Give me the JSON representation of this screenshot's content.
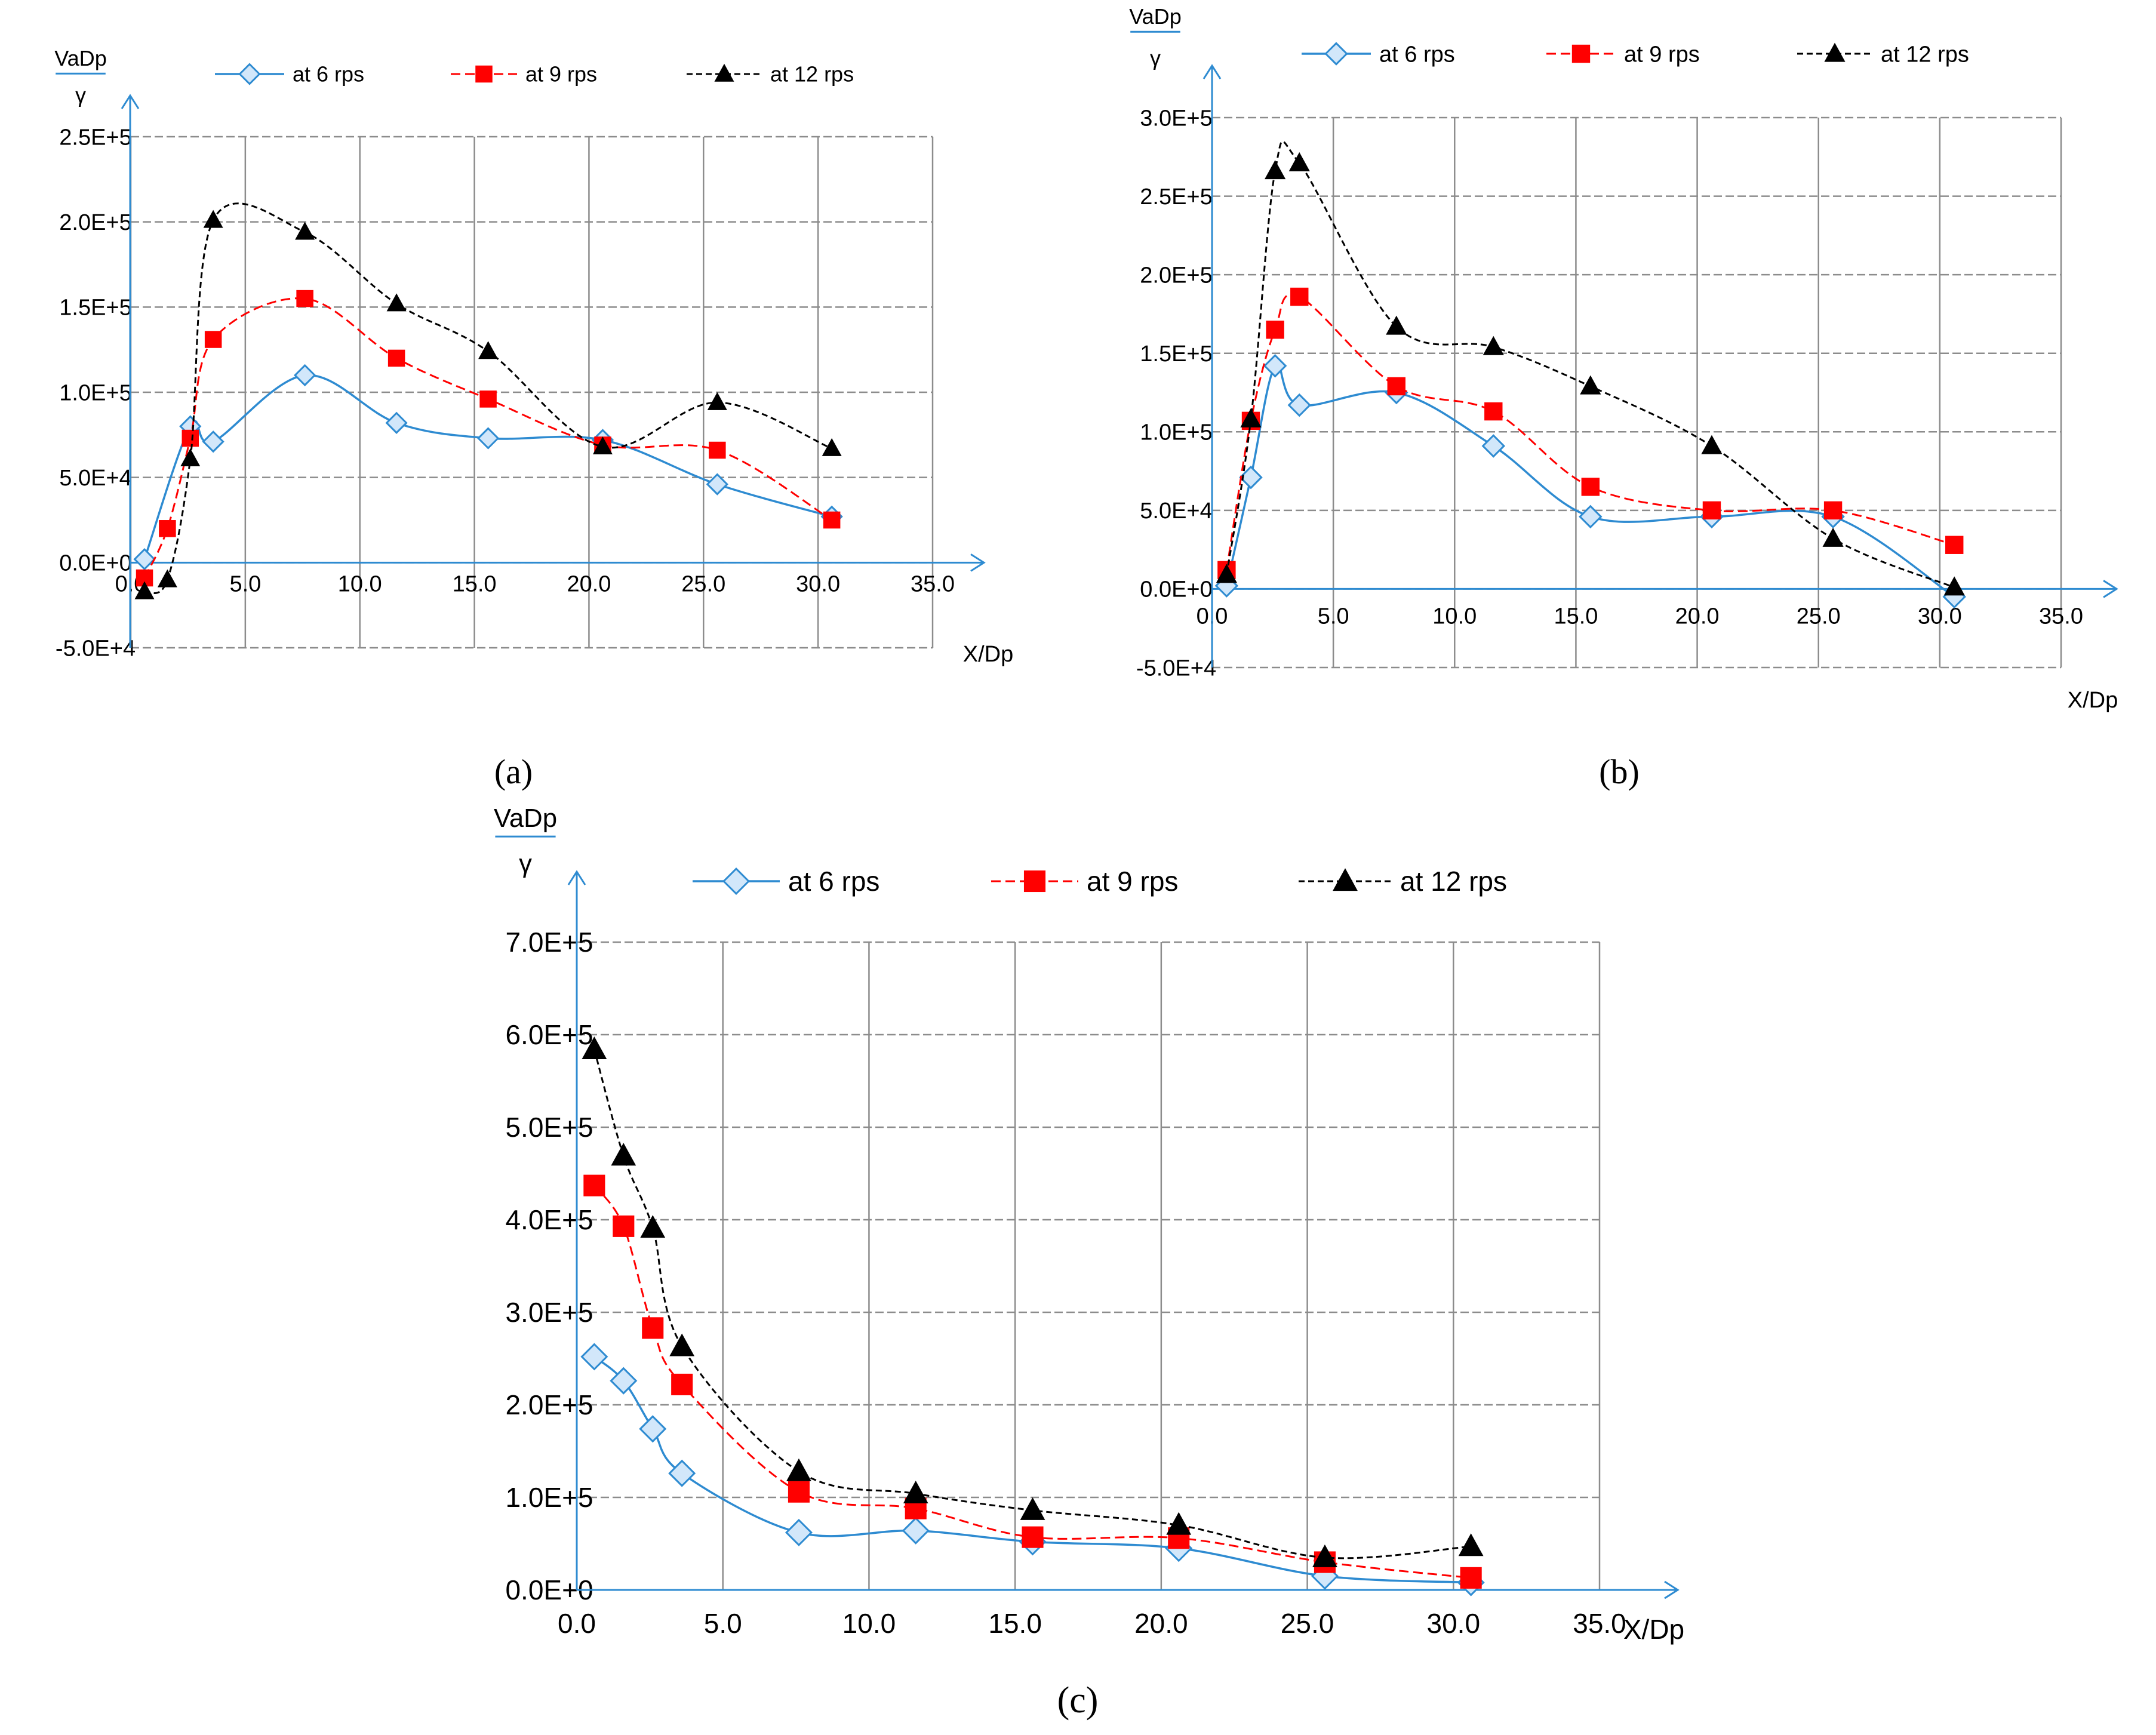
{
  "colors": {
    "s6": "#2e8bd1",
    "s6_fill": "#d2e7fa",
    "s9": "#ff0000",
    "s12": "#000000",
    "grid": "#8c8c8c",
    "axis": "#2e8bd1"
  },
  "chart_data": [
    {
      "id": "a",
      "caption": "(a)",
      "type": "line",
      "title": "",
      "ylabel": {
        "num": "VaDp",
        "den": "γ"
      },
      "xlabel": "X/Dp",
      "xlim": [
        0,
        35
      ],
      "ylim": [
        -50000,
        250000
      ],
      "xticks": [
        "0.0",
        "5.0",
        "10.0",
        "15.0",
        "20.0",
        "25.0",
        "30.0",
        "35.0"
      ],
      "yticks": [
        "-5.0E+4",
        "0.0E+0",
        "5.0E+4",
        "1.0E+5",
        "1.5E+5",
        "2.0E+5",
        "2.5E+5"
      ],
      "series": [
        {
          "name": "at 6 rps",
          "x": [
            0.6,
            2.6,
            3.6,
            7.6,
            11.6,
            15.6,
            20.6,
            25.6,
            30.6
          ],
          "values": [
            2000,
            80000,
            71000,
            110000,
            82000,
            73000,
            72000,
            46000,
            27000
          ]
        },
        {
          "name": "at 9 rps",
          "x": [
            0.6,
            1.6,
            2.6,
            3.6,
            7.6,
            11.6,
            15.6,
            20.6,
            25.6,
            30.6
          ],
          "values": [
            -9000,
            20000,
            73000,
            131000,
            155000,
            120000,
            96000,
            69000,
            66000,
            25000
          ]
        },
        {
          "name": "at 12 rps",
          "x": [
            0.6,
            1.6,
            2.6,
            3.6,
            7.6,
            11.6,
            15.6,
            20.6,
            25.6,
            30.6
          ],
          "values": [
            -17000,
            -10000,
            61000,
            201000,
            194000,
            152000,
            124000,
            68000,
            94000,
            67000
          ]
        }
      ]
    },
    {
      "id": "b",
      "caption": "(b)",
      "type": "line",
      "title": "",
      "ylabel": {
        "num": "VaDp",
        "den": "γ"
      },
      "xlabel": "X/Dp",
      "xlim": [
        0,
        35
      ],
      "ylim": [
        -50000,
        300000
      ],
      "xticks": [
        "0.0",
        "5.0",
        "10.0",
        "15.0",
        "20.0",
        "25.0",
        "30.0",
        "35.0"
      ],
      "yticks": [
        "-5.0E+4",
        "0.0E+0",
        "5.0E+4",
        "1.0E+5",
        "1.5E+5",
        "2.0E+5",
        "2.5E+5",
        "3.0E+5"
      ],
      "series": [
        {
          "name": "at 6 rps",
          "x": [
            0.6,
            1.6,
            2.6,
            3.6,
            7.6,
            11.6,
            15.6,
            20.6,
            25.6,
            30.6
          ],
          "values": [
            2000,
            71000,
            142000,
            117000,
            125000,
            91000,
            46000,
            46000,
            46000,
            -5000
          ]
        },
        {
          "name": "at 9 rps",
          "x": [
            0.6,
            1.6,
            2.6,
            3.6,
            7.6,
            11.6,
            15.6,
            20.6,
            25.6,
            30.6
          ],
          "values": [
            12000,
            107000,
            165000,
            186000,
            129000,
            113000,
            65000,
            50000,
            50000,
            28000
          ]
        },
        {
          "name": "at 12 rps",
          "x": [
            0.6,
            1.6,
            2.6,
            3.6,
            7.6,
            11.6,
            15.6,
            20.6,
            25.6,
            30.6
          ],
          "values": [
            9000,
            108000,
            266000,
            271000,
            167000,
            154000,
            129000,
            91000,
            32000,
            1000
          ]
        }
      ]
    },
    {
      "id": "c",
      "caption": "(c)",
      "type": "line",
      "title": "",
      "ylabel": {
        "num": "VaDp",
        "den": "γ"
      },
      "xlabel": "X/Dp",
      "xlim": [
        0,
        35
      ],
      "ylim": [
        0,
        700000
      ],
      "xticks": [
        "0.0",
        "5.0",
        "10.0",
        "15.0",
        "20.0",
        "25.0",
        "30.0",
        "35.0"
      ],
      "yticks": [
        "0.0E+0",
        "1.0E+5",
        "2.0E+5",
        "3.0E+5",
        "4.0E+5",
        "5.0E+5",
        "6.0E+5",
        "7.0E+5"
      ],
      "series": [
        {
          "name": "at 6 rps",
          "x": [
            0.6,
            1.6,
            2.6,
            3.6,
            7.6,
            11.6,
            15.6,
            20.6,
            25.6,
            30.6
          ],
          "values": [
            252000,
            226000,
            174000,
            126000,
            62000,
            64000,
            52000,
            45000,
            15000,
            8000
          ]
        },
        {
          "name": "at 9 rps",
          "x": [
            0.6,
            1.6,
            2.6,
            3.6,
            7.6,
            11.6,
            15.6,
            20.6,
            25.6,
            30.6
          ],
          "values": [
            437000,
            393000,
            283000,
            222000,
            106000,
            88000,
            57000,
            56000,
            30000,
            13000
          ]
        },
        {
          "name": "at 12 rps",
          "x": [
            0.6,
            1.6,
            2.6,
            3.6,
            7.6,
            11.6,
            15.6,
            20.6,
            25.6,
            30.6
          ],
          "values": [
            584000,
            469000,
            391000,
            263000,
            128000,
            104000,
            86000,
            70000,
            35000,
            47000
          ]
        }
      ]
    }
  ]
}
